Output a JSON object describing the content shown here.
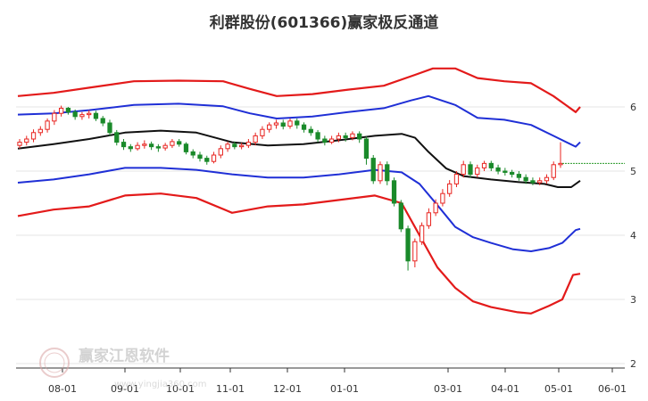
{
  "chart_data": {
    "type": "candlestick-channel",
    "title": "利群股份(601366)赢家极反通道",
    "x_ticks": [
      "08-01",
      "09-01",
      "10-01",
      "11-01",
      "12-01",
      "01-01",
      "03-01",
      "04-01",
      "05-01",
      "06-01"
    ],
    "y_ticks": [
      6,
      5,
      4,
      3,
      2
    ],
    "ylim": [
      2,
      6.9
    ],
    "last_price": 5.12,
    "colors": {
      "up": "#e8231f",
      "down": "#1a8a2a",
      "outer_band": "#e31a1a",
      "inner_band": "#1f2fd6",
      "middle_line": "#111111",
      "price_line": "#2a9a2a",
      "grid": "#e6e6e6"
    },
    "bands": {
      "outer_upper": [
        [
          0,
          6.17
        ],
        [
          40,
          6.22
        ],
        [
          80,
          6.3
        ],
        [
          130,
          6.4
        ],
        [
          180,
          6.41
        ],
        [
          230,
          6.4
        ],
        [
          260,
          6.28
        ],
        [
          290,
          6.17
        ],
        [
          330,
          6.2
        ],
        [
          370,
          6.27
        ],
        [
          410,
          6.33
        ],
        [
          445,
          6.5
        ],
        [
          465,
          6.6
        ],
        [
          490,
          6.6
        ],
        [
          515,
          6.45
        ],
        [
          545,
          6.4
        ],
        [
          575,
          6.37
        ],
        [
          600,
          6.17
        ],
        [
          625,
          5.92
        ],
        [
          630,
          6.0
        ]
      ],
      "inner_upper": [
        [
          0,
          5.88
        ],
        [
          40,
          5.9
        ],
        [
          80,
          5.95
        ],
        [
          130,
          6.03
        ],
        [
          180,
          6.05
        ],
        [
          230,
          6.01
        ],
        [
          260,
          5.9
        ],
        [
          290,
          5.82
        ],
        [
          330,
          5.85
        ],
        [
          370,
          5.92
        ],
        [
          410,
          5.98
        ],
        [
          440,
          6.1
        ],
        [
          460,
          6.17
        ],
        [
          490,
          6.03
        ],
        [
          515,
          5.83
        ],
        [
          545,
          5.8
        ],
        [
          575,
          5.72
        ],
        [
          600,
          5.55
        ],
        [
          625,
          5.38
        ],
        [
          630,
          5.45
        ]
      ],
      "middle": [
        [
          0,
          5.35
        ],
        [
          40,
          5.42
        ],
        [
          80,
          5.5
        ],
        [
          120,
          5.6
        ],
        [
          160,
          5.63
        ],
        [
          200,
          5.6
        ],
        [
          240,
          5.45
        ],
        [
          280,
          5.4
        ],
        [
          320,
          5.42
        ],
        [
          360,
          5.48
        ],
        [
          400,
          5.55
        ],
        [
          430,
          5.58
        ],
        [
          445,
          5.52
        ],
        [
          460,
          5.3
        ],
        [
          480,
          5.04
        ],
        [
          500,
          4.92
        ],
        [
          530,
          4.87
        ],
        [
          560,
          4.83
        ],
        [
          590,
          4.8
        ],
        [
          605,
          4.75
        ],
        [
          620,
          4.75
        ],
        [
          630,
          4.85
        ]
      ],
      "inner_lower": [
        [
          0,
          4.82
        ],
        [
          40,
          4.87
        ],
        [
          80,
          4.95
        ],
        [
          120,
          5.05
        ],
        [
          160,
          5.05
        ],
        [
          200,
          5.02
        ],
        [
          240,
          4.95
        ],
        [
          280,
          4.9
        ],
        [
          320,
          4.9
        ],
        [
          360,
          4.95
        ],
        [
          400,
          5.02
        ],
        [
          430,
          4.98
        ],
        [
          450,
          4.8
        ],
        [
          470,
          4.47
        ],
        [
          490,
          4.13
        ],
        [
          510,
          3.97
        ],
        [
          530,
          3.88
        ],
        [
          555,
          3.78
        ],
        [
          575,
          3.75
        ],
        [
          595,
          3.8
        ],
        [
          610,
          3.88
        ],
        [
          625,
          4.08
        ],
        [
          630,
          4.1
        ]
      ],
      "outer_lower": [
        [
          0,
          4.3
        ],
        [
          40,
          4.4
        ],
        [
          80,
          4.45
        ],
        [
          120,
          4.62
        ],
        [
          160,
          4.65
        ],
        [
          200,
          4.58
        ],
        [
          240,
          4.35
        ],
        [
          280,
          4.45
        ],
        [
          320,
          4.48
        ],
        [
          360,
          4.55
        ],
        [
          400,
          4.62
        ],
        [
          430,
          4.5
        ],
        [
          450,
          4.0
        ],
        [
          470,
          3.5
        ],
        [
          490,
          3.18
        ],
        [
          510,
          2.97
        ],
        [
          530,
          2.88
        ],
        [
          560,
          2.8
        ],
        [
          575,
          2.78
        ],
        [
          595,
          2.9
        ],
        [
          610,
          3.0
        ],
        [
          622,
          3.38
        ],
        [
          630,
          3.4
        ]
      ]
    },
    "candles": [
      [
        5.4,
        5.45,
        5.35,
        5.5
      ],
      [
        5.45,
        5.5,
        5.4,
        5.55
      ],
      [
        5.5,
        5.6,
        5.45,
        5.65
      ],
      [
        5.6,
        5.65,
        5.55,
        5.7
      ],
      [
        5.65,
        5.78,
        5.6,
        5.82
      ],
      [
        5.78,
        5.9,
        5.72,
        5.95
      ],
      [
        5.9,
        5.98,
        5.85,
        6.02
      ],
      [
        5.98,
        5.92,
        5.88,
        6.0
      ],
      [
        5.92,
        5.85,
        5.8,
        5.96
      ],
      [
        5.85,
        5.88,
        5.8,
        5.92
      ],
      [
        5.88,
        5.9,
        5.82,
        5.95
      ],
      [
        5.9,
        5.82,
        5.78,
        5.94
      ],
      [
        5.82,
        5.75,
        5.7,
        5.86
      ],
      [
        5.75,
        5.6,
        5.55,
        5.8
      ],
      [
        5.6,
        5.45,
        5.4,
        5.64
      ],
      [
        5.45,
        5.38,
        5.33,
        5.5
      ],
      [
        5.38,
        5.35,
        5.3,
        5.42
      ],
      [
        5.35,
        5.4,
        5.32,
        5.45
      ],
      [
        5.4,
        5.42,
        5.35,
        5.48
      ],
      [
        5.42,
        5.38,
        5.33,
        5.46
      ],
      [
        5.38,
        5.36,
        5.3,
        5.42
      ],
      [
        5.36,
        5.4,
        5.32,
        5.44
      ],
      [
        5.4,
        5.46,
        5.36,
        5.5
      ],
      [
        5.46,
        5.42,
        5.38,
        5.5
      ],
      [
        5.42,
        5.3,
        5.26,
        5.45
      ],
      [
        5.3,
        5.25,
        5.2,
        5.34
      ],
      [
        5.25,
        5.2,
        5.15,
        5.3
      ],
      [
        5.2,
        5.15,
        5.1,
        5.24
      ],
      [
        5.15,
        5.25,
        5.12,
        5.3
      ],
      [
        5.25,
        5.35,
        5.2,
        5.4
      ],
      [
        5.35,
        5.42,
        5.3,
        5.46
      ],
      [
        5.42,
        5.38,
        5.34,
        5.46
      ],
      [
        5.38,
        5.4,
        5.34,
        5.44
      ],
      [
        5.4,
        5.45,
        5.36,
        5.5
      ],
      [
        5.45,
        5.55,
        5.4,
        5.6
      ],
      [
        5.55,
        5.65,
        5.5,
        5.7
      ],
      [
        5.65,
        5.72,
        5.6,
        5.76
      ],
      [
        5.72,
        5.75,
        5.66,
        5.8
      ],
      [
        5.75,
        5.7,
        5.65,
        5.8
      ],
      [
        5.7,
        5.78,
        5.66,
        5.82
      ],
      [
        5.78,
        5.72,
        5.66,
        5.82
      ],
      [
        5.72,
        5.65,
        5.6,
        5.76
      ],
      [
        5.65,
        5.6,
        5.55,
        5.7
      ],
      [
        5.6,
        5.5,
        5.45,
        5.64
      ],
      [
        5.5,
        5.45,
        5.4,
        5.55
      ],
      [
        5.45,
        5.5,
        5.42,
        5.55
      ],
      [
        5.5,
        5.55,
        5.45,
        5.6
      ],
      [
        5.55,
        5.52,
        5.46,
        5.6
      ],
      [
        5.52,
        5.58,
        5.48,
        5.62
      ],
      [
        5.58,
        5.5,
        5.44,
        5.62
      ],
      [
        5.5,
        5.2,
        5.1,
        5.54
      ],
      [
        5.2,
        4.85,
        4.8,
        5.25
      ],
      [
        4.85,
        5.1,
        4.8,
        5.15
      ],
      [
        5.1,
        4.85,
        4.78,
        5.15
      ],
      [
        4.85,
        4.5,
        4.45,
        4.9
      ],
      [
        4.5,
        4.1,
        4.05,
        4.55
      ],
      [
        4.1,
        3.6,
        3.45,
        4.15
      ],
      [
        3.6,
        3.9,
        3.5,
        3.95
      ],
      [
        3.9,
        4.15,
        3.85,
        4.2
      ],
      [
        4.15,
        4.35,
        4.1,
        4.42
      ],
      [
        4.35,
        4.5,
        4.3,
        4.56
      ],
      [
        4.5,
        4.65,
        4.45,
        4.72
      ],
      [
        4.65,
        4.8,
        4.6,
        4.86
      ],
      [
        4.8,
        4.95,
        4.75,
        5.0
      ],
      [
        4.95,
        5.1,
        4.9,
        5.16
      ],
      [
        5.1,
        4.95,
        4.9,
        5.15
      ],
      [
        4.95,
        5.05,
        4.9,
        5.1
      ],
      [
        5.05,
        5.12,
        5.0,
        5.16
      ],
      [
        5.12,
        5.05,
        5.0,
        5.16
      ],
      [
        5.05,
        5.0,
        4.95,
        5.1
      ],
      [
        5.0,
        4.98,
        4.93,
        5.05
      ],
      [
        4.98,
        4.95,
        4.9,
        5.02
      ],
      [
        4.95,
        4.9,
        4.85,
        5.0
      ],
      [
        4.9,
        4.85,
        4.8,
        4.95
      ],
      [
        4.85,
        4.82,
        4.78,
        4.9
      ],
      [
        4.82,
        4.85,
        4.78,
        4.9
      ],
      [
        4.85,
        4.9,
        4.8,
        4.95
      ],
      [
        4.9,
        5.1,
        4.86,
        5.15
      ],
      [
        5.1,
        5.12,
        5.05,
        5.45
      ]
    ]
  }
}
